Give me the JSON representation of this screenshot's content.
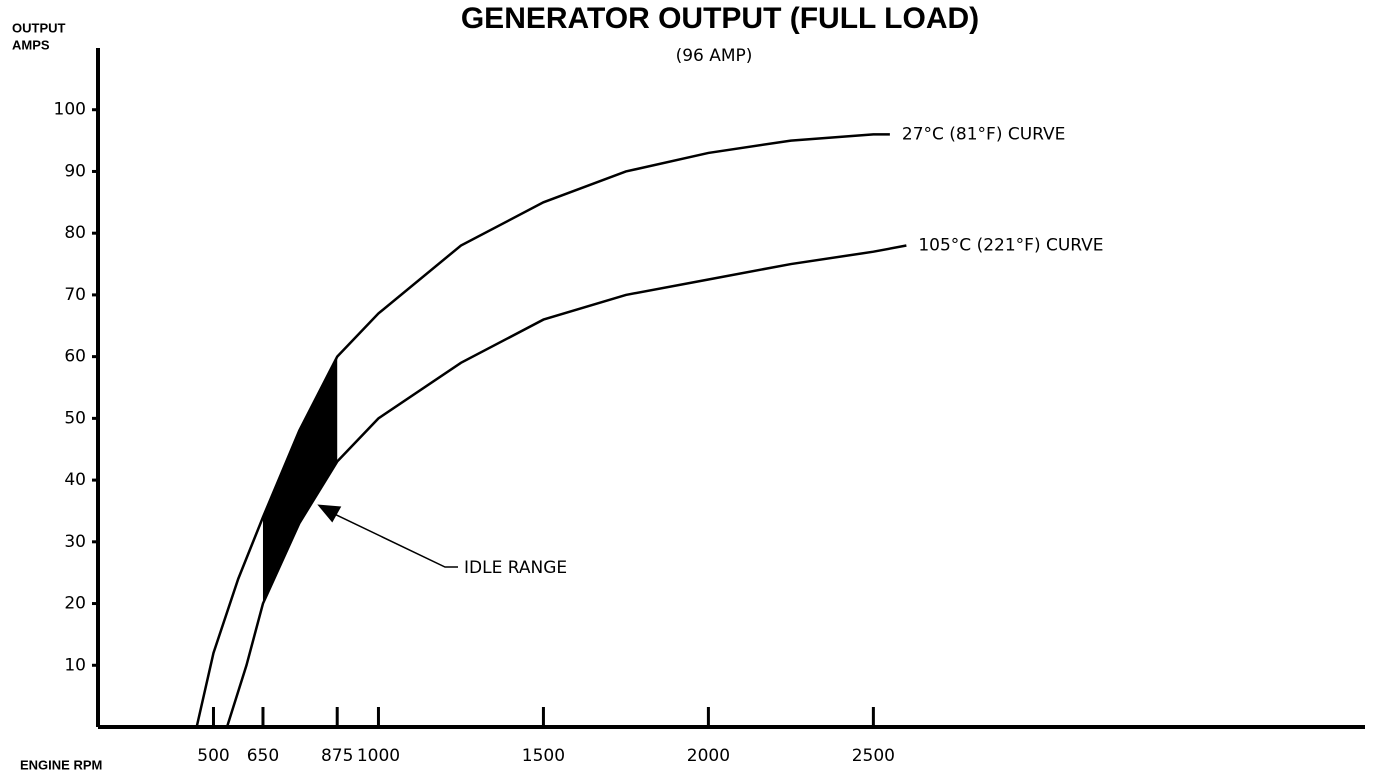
{
  "chart_data": {
    "type": "line",
    "title": "GENERATOR OUTPUT (FULL LOAD)",
    "subtitle": "(96 AMP)",
    "ylabel": [
      "OUTPUT",
      "AMPS"
    ],
    "xlabel": "ENGINE RPM",
    "xlim": [
      150,
      3990
    ],
    "ylim": [
      0,
      110
    ],
    "xticks": [
      500,
      650,
      875,
      1000,
      1500,
      2000,
      2500
    ],
    "yticks": [
      10,
      20,
      30,
      40,
      50,
      60,
      70,
      80,
      90,
      100
    ],
    "series": [
      {
        "name": "27°C (81°F) CURVE",
        "color": "#000000",
        "x": [
          449,
          500,
          575,
          650,
          760,
          875,
          1000,
          1250,
          1500,
          1750,
          2000,
          2250,
          2500,
          2550
        ],
        "values": [
          0,
          12,
          24,
          34,
          48,
          60,
          67,
          78,
          85,
          90,
          93,
          95,
          96,
          96
        ]
      },
      {
        "name": "105°C (221°F) CURVE",
        "color": "#000000",
        "x": [
          541,
          600,
          650,
          760,
          875,
          1000,
          1250,
          1500,
          1750,
          2000,
          2250,
          2500,
          2600
        ],
        "values": [
          0,
          10,
          20,
          33,
          43,
          50,
          59,
          66,
          70,
          72.5,
          75,
          77,
          78
        ]
      }
    ],
    "idle_range": [
      650,
      875
    ],
    "annotation": "IDLE RANGE"
  }
}
